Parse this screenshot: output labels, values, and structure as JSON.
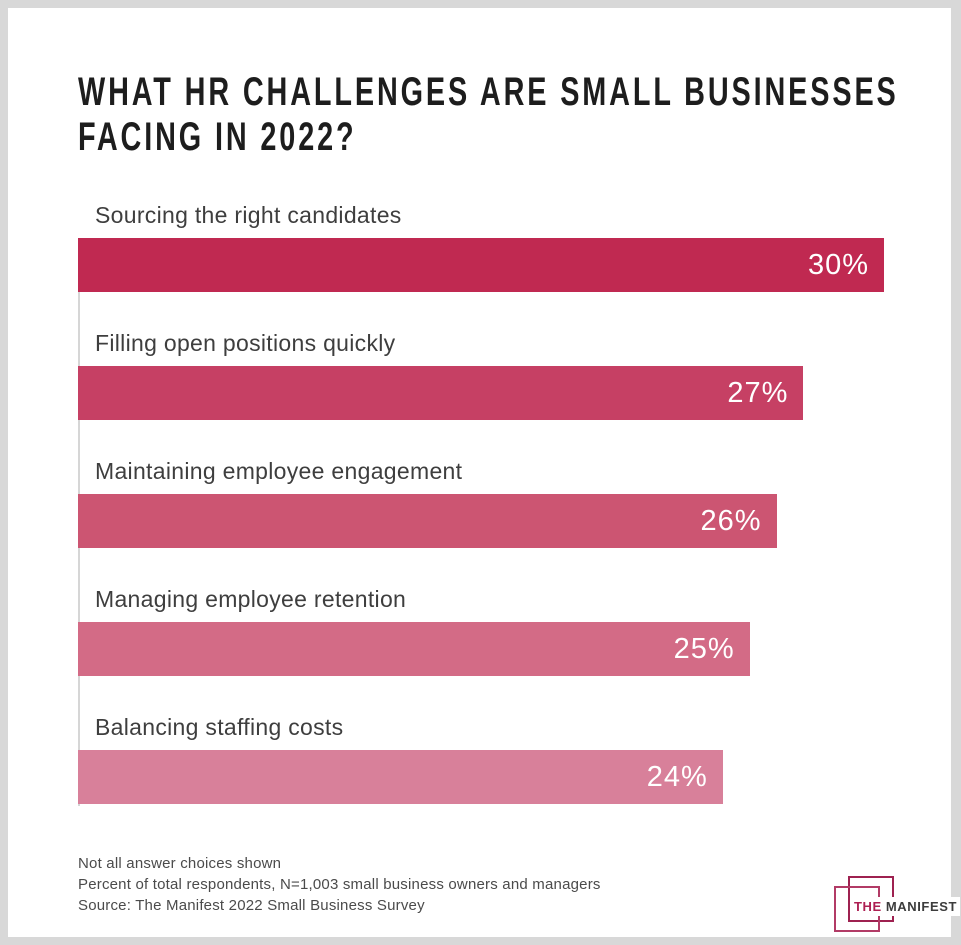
{
  "page": {
    "background_color": "#d8d8d8",
    "canvas_color": "#ffffff"
  },
  "title": {
    "line1": "WHAT HR CHALLENGES ARE SMALL BUSINESSES",
    "line2": "FACING IN 2022?"
  },
  "chart_data": {
    "type": "bar",
    "orientation": "horizontal",
    "title": "What HR challenges are small businesses facing in 2022?",
    "categories": [
      "Sourcing the right candidates",
      "Filling open positions quickly",
      "Maintaining employee engagement",
      "Managing employee retention",
      "Balancing staffing costs"
    ],
    "values": [
      30,
      27,
      26,
      25,
      24
    ],
    "value_labels": [
      "30%",
      "27%",
      "26%",
      "25%",
      "24%"
    ],
    "bar_colors": [
      "#c02951",
      "#c64064",
      "#cc5572",
      "#d36b86",
      "#d8809a"
    ],
    "xlim": [
      0,
      30
    ],
    "unit": "percent",
    "grid": false,
    "legend": "none",
    "value_label_position": "inside-end",
    "value_label_color": "#ffffff"
  },
  "footnotes": {
    "line1": "Not all answer choices shown",
    "line2": "Percent of total respondents, N=1,003 small business owners and managers",
    "line3": "Source: The Manifest 2022 Small Business Survey"
  },
  "logo": {
    "prefix": "THE",
    "suffix": "MANIFEST",
    "prefix_color": "#ad1f52",
    "suffix_color": "#3c3c3c",
    "square_dark_color": "#9e2150",
    "square_light_color": "#b23b66"
  }
}
